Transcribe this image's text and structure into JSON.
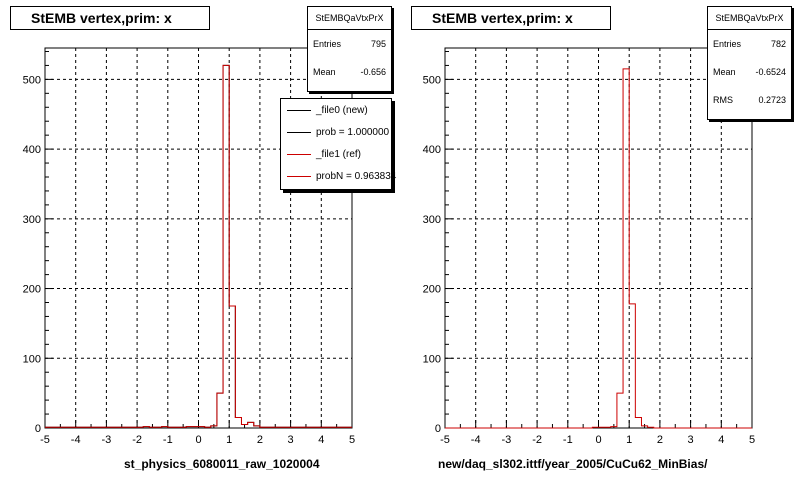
{
  "footer_text": "",
  "chart_data": [
    {
      "type": "bar",
      "style": "step-histogram",
      "title": "StEMB  vertex,prim: x",
      "xlabel": "st_physics_6080011_raw_1020004",
      "ylabel": "",
      "xlim": [
        -5,
        5
      ],
      "ylim": [
        0,
        545
      ],
      "xticks": [
        "-5",
        "-4",
        "-3",
        "-2",
        "-1",
        "0",
        "1",
        "2",
        "3",
        "4",
        "5"
      ],
      "yticks": [
        "0",
        "100",
        "200",
        "300",
        "400",
        "500"
      ],
      "grid": true,
      "stats": {
        "name": "StEMBQaVtxPrX",
        "rows": [
          {
            "label": "Entries",
            "value": "795"
          },
          {
            "label": "Mean",
            "value": "-0.656"
          }
        ]
      },
      "legend": [
        {
          "label": "_file0 (new)",
          "color": "#000000"
        },
        {
          "label": "prob = 1.000000",
          "color": "#000000"
        },
        {
          "label": "_file1 (ref)",
          "color": "#cc0000"
        },
        {
          "label": "probN = 0.963834",
          "color": "#cc0000"
        }
      ],
      "legend_position": "top-right",
      "bin_edges": [
        -5,
        5
      ],
      "bin_count": 50,
      "series": [
        {
          "color": "#000000",
          "values": [
            1,
            1,
            1,
            1,
            1,
            1,
            1,
            1,
            1,
            1,
            1,
            1,
            1,
            1,
            1,
            1,
            2,
            1,
            1,
            2,
            1,
            1,
            1,
            2,
            2,
            2,
            1,
            3,
            50,
            520,
            175,
            15,
            5,
            8,
            3,
            1,
            1,
            1,
            1,
            1,
            1,
            1,
            1,
            1,
            1,
            1,
            1,
            1,
            1,
            1
          ]
        },
        {
          "color": "#cc0000",
          "values": [
            1,
            1,
            1,
            1,
            1,
            1,
            1,
            1,
            1,
            1,
            1,
            1,
            1,
            1,
            1,
            1,
            2,
            1,
            1,
            2,
            1,
            1,
            1,
            2,
            2,
            2,
            1,
            3,
            50,
            520,
            175,
            15,
            5,
            8,
            3,
            1,
            1,
            1,
            1,
            1,
            1,
            1,
            1,
            1,
            1,
            1,
            1,
            1,
            1,
            1
          ]
        }
      ]
    },
    {
      "type": "bar",
      "style": "step-histogram",
      "title": "StEMB  vertex,prim: x",
      "xlabel": "new/daq_sl302.ittf/year_2005/CuCu62_MinBias/",
      "ylabel": "",
      "xlim": [
        -5,
        5
      ],
      "ylim": [
        0,
        545
      ],
      "xticks": [
        "-5",
        "-4",
        "-3",
        "-2",
        "-1",
        "0",
        "1",
        "2",
        "3",
        "4",
        "5"
      ],
      "yticks": [
        "0",
        "100",
        "200",
        "300",
        "400",
        "500"
      ],
      "grid": true,
      "stats": {
        "name": "StEMBQaVtxPrX",
        "rows": [
          {
            "label": "Entries",
            "value": "782"
          },
          {
            "label": "Mean",
            "value": "-0.6524"
          },
          {
            "label": "RMS",
            "value": "0.2723"
          }
        ]
      },
      "bin_edges": [
        -5,
        5
      ],
      "bin_count": 50,
      "series": [
        {
          "color": "#cc0000",
          "values": [
            0,
            0,
            0,
            0,
            0,
            0,
            0,
            0,
            0,
            0,
            0,
            0,
            0,
            0,
            0,
            0,
            0,
            0,
            0,
            0,
            0,
            0,
            0,
            0,
            1,
            1,
            1,
            2,
            50,
            515,
            178,
            15,
            3,
            1,
            0,
            0,
            0,
            0,
            0,
            0,
            0,
            0,
            0,
            0,
            0,
            0,
            0,
            0,
            0,
            0
          ]
        }
      ]
    }
  ]
}
